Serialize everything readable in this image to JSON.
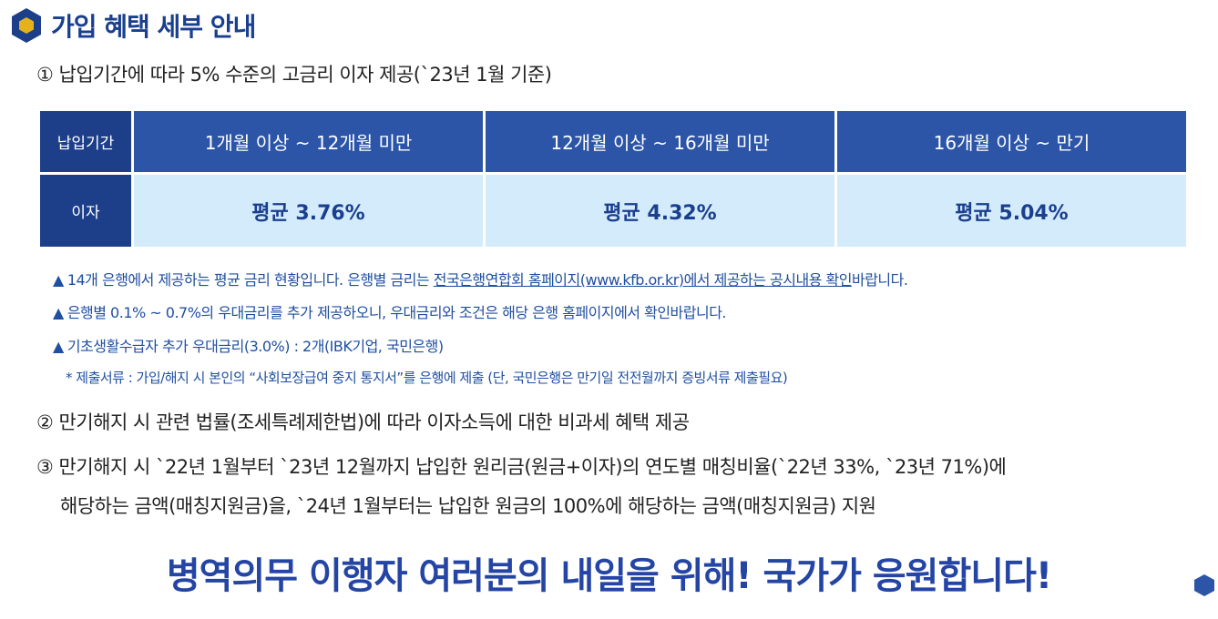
{
  "section": {
    "title": "가입 혜택 세부 안내",
    "icon": "hexagon-icon"
  },
  "point1": "① 납입기간에 따라 5% 수준의 고금리 이자 제공(`23년 1월 기준)",
  "table": {
    "header_label": "납입기간",
    "periods": [
      "1개월 이상 ~ 12개월 미만",
      "12개월 이상 ~ 16개월 미만",
      "16개월 이상 ~ 만기"
    ],
    "rate_label": "이자",
    "rates": [
      "평균 3.76%",
      "평균 4.32%",
      "평균 5.04%"
    ]
  },
  "notes": {
    "n1_a": "14개 은행에서 제공하는 평균 금리 현황입니다. 은행별 금리는 ",
    "n1_link": "전국은행연합회 홈페이지(www.kfb.or.kr)에서 제공하는 공시내용 확인",
    "n1_b": "바랍니다.",
    "n2": "은행별 0.1% ~ 0.7%의 우대금리를 추가 제공하오니, 우대금리와 조건은 해당 은행 홈페이지에서 확인바랍니다.",
    "n3": "기초생활수급자 추가 우대금리(3.0%) : 2개(IBK기업, 국민은행)",
    "n4": "* 제출서류 : 가입/해지 시 본인의 “사회보장급여 중지 통지서”를 은행에 제출 (단, 국민은행은 만기일 전전월까지 증빙서류 제출필요)"
  },
  "point2": "② 만기해지 시 관련 법률(조세특례제한법)에 따라 이자소득에 대한 비과세 혜택 제공",
  "point3_line1": "③ 만기해지 시 `22년 1월부터 `23년 12월까지 납입한 원리금(원금+이자)의 연도별 매칭비율(`22년 33%, `23년 71%)에",
  "point3_line2": "해당하는 금액(매칭지원금)을, `24년 1월부터는 납입한 원금의 100%에 해당하는 금액(매칭지원금) 지원",
  "slogan": "병역의무 이행자 여러분의 내일을 위해! 국가가 응원합니다!",
  "colors": {
    "navy": "#1d3f8a",
    "blue": "#2c55a8",
    "light_blue": "#d3ebfa",
    "accent_gold": "#e5b21c"
  }
}
